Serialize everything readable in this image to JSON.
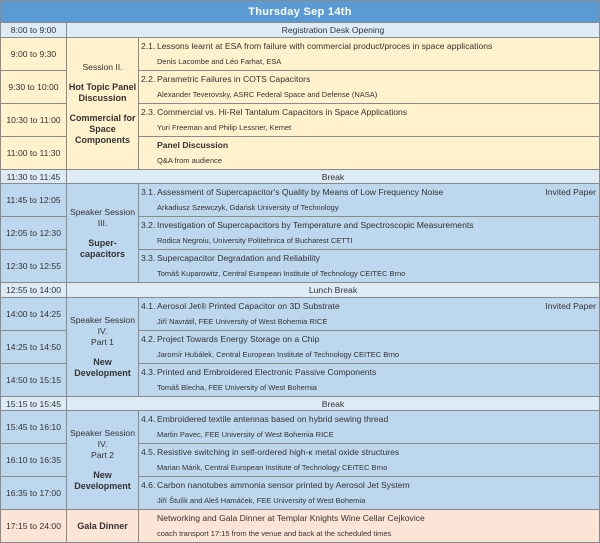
{
  "header": {
    "title": "Thursday Sep 14th"
  },
  "colors": {
    "header": "#5b9bd5",
    "plain_row": "#ddebf7",
    "session2": "#fff2cc",
    "session3_4": "#bdd7ee",
    "gala": "#fce4d6"
  },
  "rows": [
    {
      "type": "full",
      "time": "8:00 to 9:00",
      "text": "Registration Desk Opening",
      "h": 15
    },
    {
      "type": "talk",
      "color": "yel",
      "time": "9:00 to 9:30",
      "num": "2.1.",
      "title": "Lessons learnt at ESA from failure with commercial product/proces in space applications",
      "authors": "Denis Lacombe and Léo Farhat, ESA",
      "h": 31,
      "session": {
        "group": "s2",
        "rowspan": 4,
        "lines": [
          "Session II."
        ],
        "bold": [
          "Hot Topic Panel Discussion",
          "Commercial for Space Components"
        ]
      }
    },
    {
      "type": "talk",
      "color": "yel",
      "time": "9:30 to 10:00",
      "num": "2.2.",
      "title": "Parametric Failures in COTS Capacitors",
      "authors": "Alexander Teverovsky, ASRC Federal Space and Defense (NASA)",
      "h": 31
    },
    {
      "type": "talk",
      "color": "yel",
      "time": "10:30 to 11:00",
      "num": "2.3.",
      "title": "Commercial vs. Hi-Rel Tantalum Capacitors in Space Applications",
      "authors": "Yuri Freeman and Philip Lessner, Kemet",
      "h": 31
    },
    {
      "type": "talk",
      "color": "yel",
      "time": "11:00 to 11:30",
      "num": "",
      "title": "Panel Discussion",
      "bold": true,
      "authors": "Q&A from audience",
      "h": 31
    },
    {
      "type": "full",
      "time": "11:30 to 11:45",
      "text": "Break",
      "h": 14
    },
    {
      "type": "talk",
      "color": "blu",
      "time": "11:45 to 12:05",
      "num": "3.1.",
      "title": "Assessment of Supercapacitor's Quality by Means of Low Frequency Noise",
      "invited": "Invited Paper",
      "authors": "Arkadiusz Szewczyk, Gdańsk University of Technology",
      "h": 31,
      "session": {
        "group": "s3",
        "rowspan": 3,
        "lines": [
          "Speaker Session III."
        ],
        "bold": [
          "Super-capacitors"
        ]
      }
    },
    {
      "type": "talk",
      "color": "blu",
      "time": "12:05 to 12:30",
      "num": "3.2.",
      "title": "Investigation of Supercapacitors by Temperature and Spectroscopic Measurements",
      "authors": "Rodica Negroiu, University Politehnica of Bucharest CETTI",
      "h": 32
    },
    {
      "type": "talk",
      "color": "blu",
      "time": "12:30 to 12:55",
      "num": "3.3.",
      "title": "Supercapacitor Degradation and Reliability",
      "authors": "Tomáš Kuparowitz, Central European Institute of Technology CEITEC Brno",
      "h": 32
    },
    {
      "type": "full",
      "time": "12:55 to 14:00",
      "text": "Lunch Break",
      "h": 15
    },
    {
      "type": "talk",
      "color": "blu",
      "time": "14:00 to 14:25",
      "num": "4.1.",
      "title": "Aerosol Jet® Printed Capacitor on 3D Substrate",
      "invited": "Invited Paper",
      "authors": "Jiří Navrátil, FEE University of West Bohemia RICE",
      "h": 31,
      "session": {
        "group": "s4a",
        "rowspan": 3,
        "lines": [
          "Speaker Session IV.",
          "Part 1"
        ],
        "bold": [
          "New Development"
        ]
      }
    },
    {
      "type": "talk",
      "color": "blu",
      "time": "14:25 to 14:50",
      "num": "4.2.",
      "title": "Project Towards Energy Storage on a Chip",
      "authors": "Jaromír Hubálek, Central European Institute of Technology CEITEC Brno",
      "h": 31
    },
    {
      "type": "talk",
      "color": "blu",
      "time": "14:50 to 15:15",
      "num": "4.3.",
      "title": "Printed and Embroidered Electronic Passive Components",
      "authors": "Tomáš Blecha, FEE University of West Bohemia",
      "h": 32
    },
    {
      "type": "full",
      "time": "15:15 to 15:45",
      "text": "Break",
      "h": 14
    },
    {
      "type": "talk",
      "color": "blu",
      "time": "15:45 to 16:10",
      "num": "4.4.",
      "title": "Embroidered textile antennas based on hybrid sewing thread",
      "authors": "Martin Pavec, FEE University of West Bohemia RICE",
      "h": 32,
      "session": {
        "group": "s4b",
        "rowspan": 3,
        "lines": [
          "Speaker Session IV.",
          "Part 2"
        ],
        "bold": [
          "New Development"
        ]
      }
    },
    {
      "type": "talk",
      "color": "blu",
      "time": "16:10 to 16:35",
      "num": "4.5.",
      "title": "Resistive switching in self-ordered high-κ metal oxide structures",
      "authors": "Marian Márik, Central European Institute of Technology CEITEC Brno",
      "h": 31
    },
    {
      "type": "talk",
      "color": "blu",
      "time": "16:35 to 17:00",
      "num": "4.6.",
      "title": "Carbon nanotubes ammonia sensor printed by Aerosol Jet System",
      "authors": "Jiří Štulík and Aleš Hamáček, FEE University of West Bohemia",
      "h": 31
    },
    {
      "type": "talk",
      "color": "gala",
      "time": "17:15 to 24:00",
      "num": "",
      "title": "Networking and Gala Dinner at Templar Knights Wine Cellar Cejkovice",
      "authors": "coach transport 17:15 from the venue and back at the scheduled times",
      "h": 32,
      "session": {
        "group": "gala",
        "rowspan": 1,
        "lines": [],
        "bold": [
          "Gala Dinner"
        ]
      }
    }
  ]
}
